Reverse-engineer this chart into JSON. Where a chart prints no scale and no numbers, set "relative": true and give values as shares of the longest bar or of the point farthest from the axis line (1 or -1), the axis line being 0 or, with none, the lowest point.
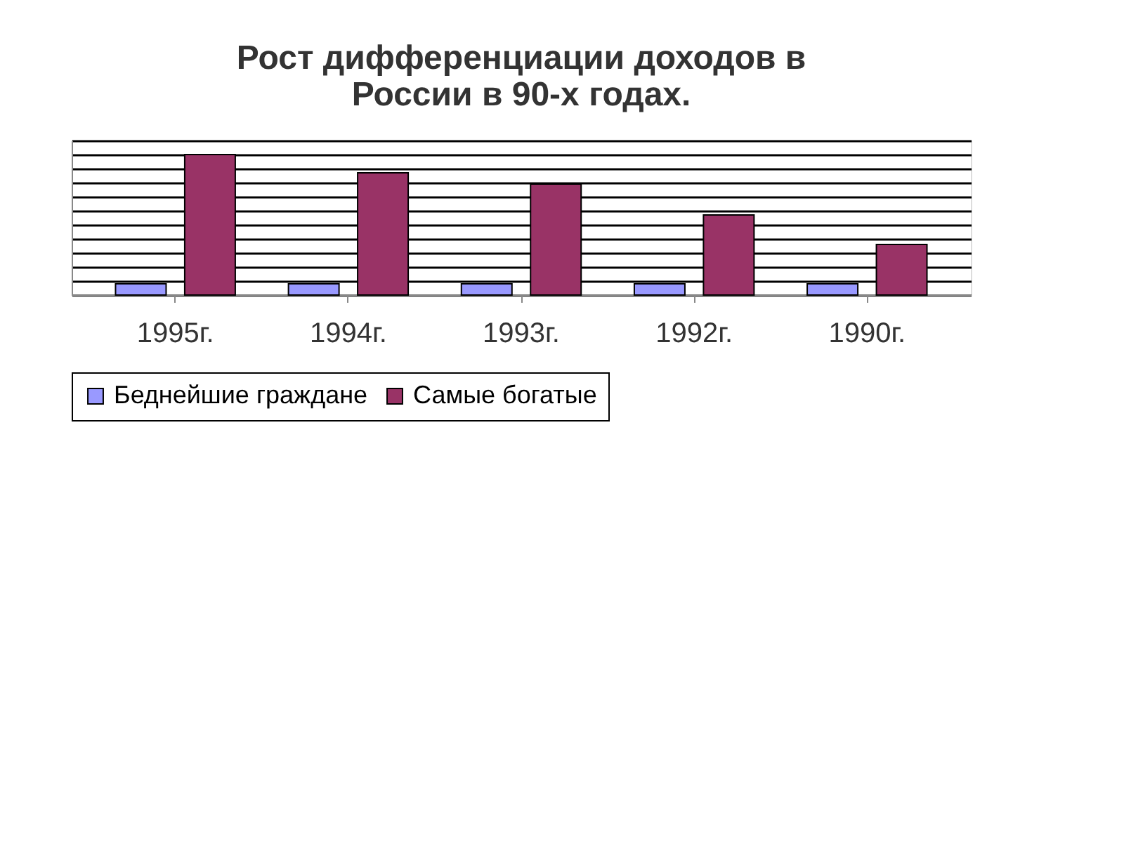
{
  "chart_data": {
    "type": "bar",
    "title": [
      "Рост дифференциации доходов в",
      "России в 90-х годах."
    ],
    "relative": true,
    "categories": [
      "1995г.",
      "1994г.",
      "1993г.",
      "1992г.",
      "1990г."
    ],
    "series": [
      {
        "name": "Беднейшие граждане",
        "color": "#9999ff",
        "values": [
          0.08,
          0.08,
          0.08,
          0.08,
          0.08
        ]
      },
      {
        "name": "Самые богатые",
        "color": "#993366",
        "values": [
          1,
          0.87,
          0.79,
          0.57,
          0.36
        ]
      }
    ],
    "grid": "y",
    "legend": "bottom"
  }
}
